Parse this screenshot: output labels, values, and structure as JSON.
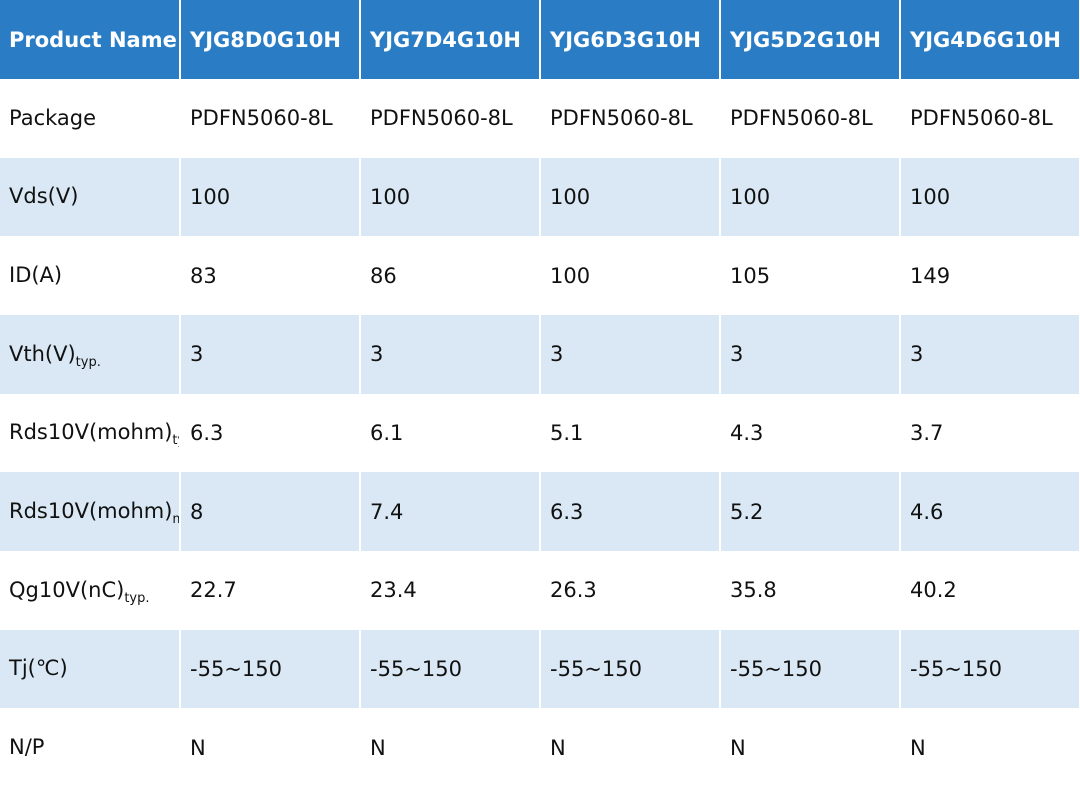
{
  "header": {
    "name_label": "Product Name",
    "products": [
      "YJG8D0G10H",
      "YJG7D4G10H",
      "YJG6D3G10H",
      "YJG5D2G10H",
      "YJG4D6G10H"
    ]
  },
  "rows": [
    {
      "label": "Package",
      "sub": "",
      "values": [
        "PDFN5060-8L",
        "PDFN5060-8L",
        "PDFN5060-8L",
        "PDFN5060-8L",
        "PDFN5060-8L"
      ]
    },
    {
      "label": "Vds(V)",
      "sub": "",
      "values": [
        "100",
        "100",
        "100",
        "100",
        "100"
      ]
    },
    {
      "label": "ID(A)",
      "sub": "",
      "values": [
        "83",
        "86",
        "100",
        "105",
        "149"
      ]
    },
    {
      "label": "Vth(V)",
      "sub": "typ.",
      "values": [
        "3",
        "3",
        "3",
        "3",
        "3"
      ]
    },
    {
      "label": "Rds10V(mohm)",
      "sub": "typ.",
      "values": [
        "6.3",
        "6.1",
        "5.1",
        "4.3",
        "3.7"
      ]
    },
    {
      "label": "Rds10V(mohm)",
      "sub": "max.",
      "values": [
        "8",
        "7.4",
        "6.3",
        "5.2",
        "4.6"
      ]
    },
    {
      "label": "Qg10V(nC)",
      "sub": "typ.",
      "values": [
        "22.7",
        "23.4",
        "26.3",
        "35.8",
        "40.2"
      ]
    },
    {
      "label": "Tj(℃)",
      "sub": "",
      "values": [
        "-55~150",
        "-55~150",
        "-55~150",
        "-55~150",
        "-55~150"
      ]
    },
    {
      "label": "N/P",
      "sub": "",
      "values": [
        "N",
        "N",
        "N",
        "N",
        "N"
      ]
    }
  ]
}
